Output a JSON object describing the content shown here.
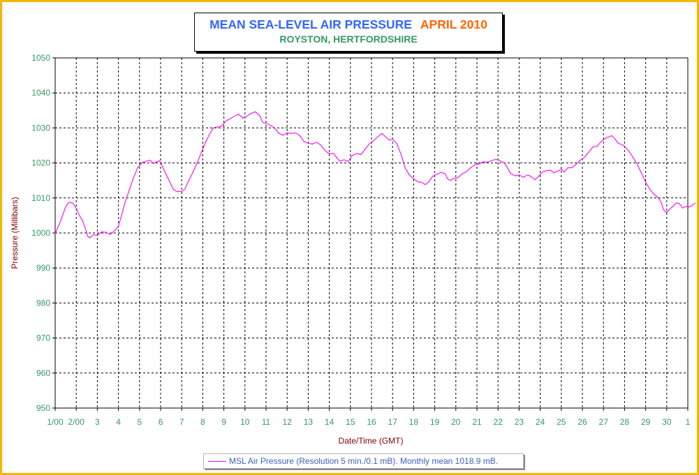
{
  "chart_data": {
    "type": "line",
    "title": "MEAN SEA-LEVEL AIR PRESSURE",
    "title_month": "APRIL 2010",
    "subtitle": "ROYSTON, HERTFORDSHIRE",
    "xlabel": "Date/Time (GMT)",
    "ylabel": "Pressure (Millibars)",
    "ylim": [
      950,
      1050
    ],
    "yticks": [
      950,
      960,
      970,
      980,
      990,
      1000,
      1010,
      1020,
      1030,
      1040,
      1050
    ],
    "xlim": [
      1,
      31
    ],
    "xticks": [
      {
        "x": 1,
        "label": "1/00"
      },
      {
        "x": 2,
        "label": "2/00"
      },
      {
        "x": 3,
        "label": "3"
      },
      {
        "x": 4,
        "label": "4"
      },
      {
        "x": 5,
        "label": "5"
      },
      {
        "x": 6,
        "label": "6"
      },
      {
        "x": 7,
        "label": "7"
      },
      {
        "x": 8,
        "label": "8"
      },
      {
        "x": 9,
        "label": "9"
      },
      {
        "x": 10,
        "label": "10"
      },
      {
        "x": 11,
        "label": "11"
      },
      {
        "x": 12,
        "label": "12"
      },
      {
        "x": 13,
        "label": "13"
      },
      {
        "x": 14,
        "label": "14"
      },
      {
        "x": 15,
        "label": "15"
      },
      {
        "x": 16,
        "label": "16"
      },
      {
        "x": 17,
        "label": "17"
      },
      {
        "x": 18,
        "label": "18"
      },
      {
        "x": 19,
        "label": "19"
      },
      {
        "x": 20,
        "label": "20"
      },
      {
        "x": 21,
        "label": "21"
      },
      {
        "x": 22,
        "label": "22"
      },
      {
        "x": 23,
        "label": "23"
      },
      {
        "x": 24,
        "label": "24"
      },
      {
        "x": 25,
        "label": "25"
      },
      {
        "x": 26,
        "label": "26"
      },
      {
        "x": 27,
        "label": "27"
      },
      {
        "x": 28,
        "label": "28"
      },
      {
        "x": 29,
        "label": "29"
      },
      {
        "x": 30,
        "label": "30"
      },
      {
        "x": 31,
        "label": "1"
      }
    ],
    "grid": true,
    "legend_position": "bottom-center",
    "series": [
      {
        "name": "MSL Air Pressure (Resolution 5 min./0.1 mB). Monthly mean 1018.9 mB.",
        "color": "#ff00ff",
        "points": [
          [
            1.0,
            999.8
          ],
          [
            1.1,
            1001.2
          ],
          [
            1.2,
            1002.5
          ],
          [
            1.35,
            1005
          ],
          [
            1.5,
            1007.5
          ],
          [
            1.6,
            1008.5
          ],
          [
            1.7,
            1008.8
          ],
          [
            1.85,
            1008.5
          ],
          [
            2.0,
            1007
          ],
          [
            2.15,
            1005
          ],
          [
            2.3,
            1003.5
          ],
          [
            2.45,
            1001
          ],
          [
            2.55,
            999
          ],
          [
            2.65,
            998.6
          ],
          [
            2.8,
            999.5
          ],
          [
            3.0,
            999.3
          ],
          [
            3.2,
            1000.3
          ],
          [
            3.4,
            1000.2
          ],
          [
            3.6,
            999.6
          ],
          [
            3.8,
            1000.5
          ],
          [
            4.0,
            1002
          ],
          [
            4.15,
            1005
          ],
          [
            4.3,
            1008.5
          ],
          [
            4.5,
            1012
          ],
          [
            4.7,
            1015.5
          ],
          [
            4.9,
            1018.5
          ],
          [
            5.1,
            1020
          ],
          [
            5.3,
            1020.5
          ],
          [
            5.5,
            1020.8
          ],
          [
            5.65,
            1019.8
          ],
          [
            5.8,
            1020.3
          ],
          [
            5.95,
            1020.6
          ],
          [
            6.05,
            1019.5
          ],
          [
            6.2,
            1017.5
          ],
          [
            6.4,
            1015
          ],
          [
            6.6,
            1012.5
          ],
          [
            6.8,
            1011.8
          ],
          [
            7.0,
            1011.9
          ],
          [
            7.15,
            1012.5
          ],
          [
            7.3,
            1014.5
          ],
          [
            7.5,
            1017
          ],
          [
            7.7,
            1019.5
          ],
          [
            7.9,
            1022.5
          ],
          [
            8.1,
            1025.5
          ],
          [
            8.3,
            1028
          ],
          [
            8.5,
            1030
          ],
          [
            8.7,
            1030.3
          ],
          [
            8.9,
            1030.5
          ],
          [
            9.1,
            1032
          ],
          [
            9.3,
            1032.6
          ],
          [
            9.5,
            1033.4
          ],
          [
            9.7,
            1033.9
          ],
          [
            9.9,
            1032.8
          ],
          [
            10.1,
            1033.4
          ],
          [
            10.3,
            1034.2
          ],
          [
            10.5,
            1034.6
          ],
          [
            10.7,
            1033.5
          ],
          [
            10.85,
            1031.5
          ],
          [
            11.0,
            1031.3
          ],
          [
            11.2,
            1030.8
          ],
          [
            11.4,
            1030
          ],
          [
            11.6,
            1028.5
          ],
          [
            11.8,
            1027.9
          ],
          [
            12.0,
            1028.6
          ],
          [
            12.2,
            1028.4
          ],
          [
            12.4,
            1028.6
          ],
          [
            12.6,
            1027.8
          ],
          [
            12.8,
            1026.1
          ],
          [
            13.0,
            1025.6
          ],
          [
            13.2,
            1025.4
          ],
          [
            13.4,
            1025.9
          ],
          [
            13.6,
            1025.1
          ],
          [
            13.8,
            1023.5
          ],
          [
            14.0,
            1022.6
          ],
          [
            14.2,
            1022.7
          ],
          [
            14.35,
            1021.5
          ],
          [
            14.5,
            1020.5
          ],
          [
            14.7,
            1020.9
          ],
          [
            14.9,
            1020.4
          ],
          [
            15.1,
            1022.2
          ],
          [
            15.3,
            1022.7
          ],
          [
            15.5,
            1022.4
          ],
          [
            15.7,
            1023.9
          ],
          [
            15.9,
            1025.5
          ],
          [
            16.1,
            1026.3
          ],
          [
            16.3,
            1027.5
          ],
          [
            16.5,
            1028.4
          ],
          [
            16.7,
            1027.3
          ],
          [
            16.85,
            1026.5
          ],
          [
            17.0,
            1026.9
          ],
          [
            17.2,
            1025.5
          ],
          [
            17.4,
            1022.5
          ],
          [
            17.6,
            1018.5
          ],
          [
            17.8,
            1016.5
          ],
          [
            18.0,
            1015.5
          ],
          [
            18.2,
            1014.6
          ],
          [
            18.4,
            1014.4
          ],
          [
            18.55,
            1013.8
          ],
          [
            18.7,
            1014.5
          ],
          [
            18.9,
            1016.2
          ],
          [
            19.1,
            1016.8
          ],
          [
            19.3,
            1017.3
          ],
          [
            19.5,
            1016.9
          ],
          [
            19.6,
            1015.5
          ],
          [
            19.75,
            1015
          ],
          [
            19.9,
            1015.6
          ],
          [
            20.1,
            1015.8
          ],
          [
            20.3,
            1016.9
          ],
          [
            20.5,
            1017.5
          ],
          [
            20.7,
            1018.6
          ],
          [
            20.9,
            1019.5
          ],
          [
            21.1,
            1019.7
          ],
          [
            21.3,
            1020.3
          ],
          [
            21.5,
            1020.2
          ],
          [
            21.7,
            1020.7
          ],
          [
            21.9,
            1021
          ],
          [
            22.1,
            1020.6
          ],
          [
            22.3,
            1020
          ],
          [
            22.45,
            1018.6
          ],
          [
            22.6,
            1017
          ],
          [
            22.8,
            1016.3
          ],
          [
            23.0,
            1016.6
          ],
          [
            23.2,
            1015.9
          ],
          [
            23.4,
            1016.6
          ],
          [
            23.55,
            1016.2
          ],
          [
            23.75,
            1015.2
          ],
          [
            23.9,
            1016
          ],
          [
            24.1,
            1017.4
          ],
          [
            24.3,
            1017.8
          ],
          [
            24.5,
            1017.9
          ],
          [
            24.65,
            1017.2
          ],
          [
            24.8,
            1017.6
          ],
          [
            25.0,
            1018.2
          ],
          [
            25.15,
            1017.4
          ],
          [
            25.3,
            1018.6
          ],
          [
            25.5,
            1018.6
          ],
          [
            25.7,
            1019.6
          ],
          [
            25.9,
            1020.8
          ],
          [
            26.1,
            1021.6
          ],
          [
            26.3,
            1023.1
          ],
          [
            26.5,
            1024.6
          ],
          [
            26.7,
            1024.7
          ],
          [
            26.9,
            1026.2
          ],
          [
            27.1,
            1027.1
          ],
          [
            27.3,
            1027.5
          ],
          [
            27.4,
            1027.8
          ],
          [
            27.55,
            1026.8
          ],
          [
            27.7,
            1025.6
          ],
          [
            27.85,
            1025.3
          ],
          [
            28.0,
            1024.8
          ],
          [
            28.2,
            1023.4
          ],
          [
            28.4,
            1021.6
          ],
          [
            28.6,
            1019.6
          ],
          [
            28.8,
            1017.1
          ],
          [
            29.0,
            1014.5
          ],
          [
            29.2,
            1012.5
          ],
          [
            29.4,
            1011
          ],
          [
            29.6,
            1010.1
          ],
          [
            29.75,
            1008.5
          ],
          [
            29.85,
            1006.6
          ],
          [
            30.0,
            1005.8
          ],
          [
            30.15,
            1006.9
          ],
          [
            30.3,
            1007.6
          ],
          [
            30.45,
            1008.6
          ],
          [
            30.6,
            1008.4
          ],
          [
            30.75,
            1007.1
          ],
          [
            30.9,
            1007.6
          ],
          [
            31.05,
            1007.4
          ],
          [
            31.2,
            1007.8
          ],
          [
            31.35,
            1008.6
          ]
        ]
      }
    ]
  }
}
